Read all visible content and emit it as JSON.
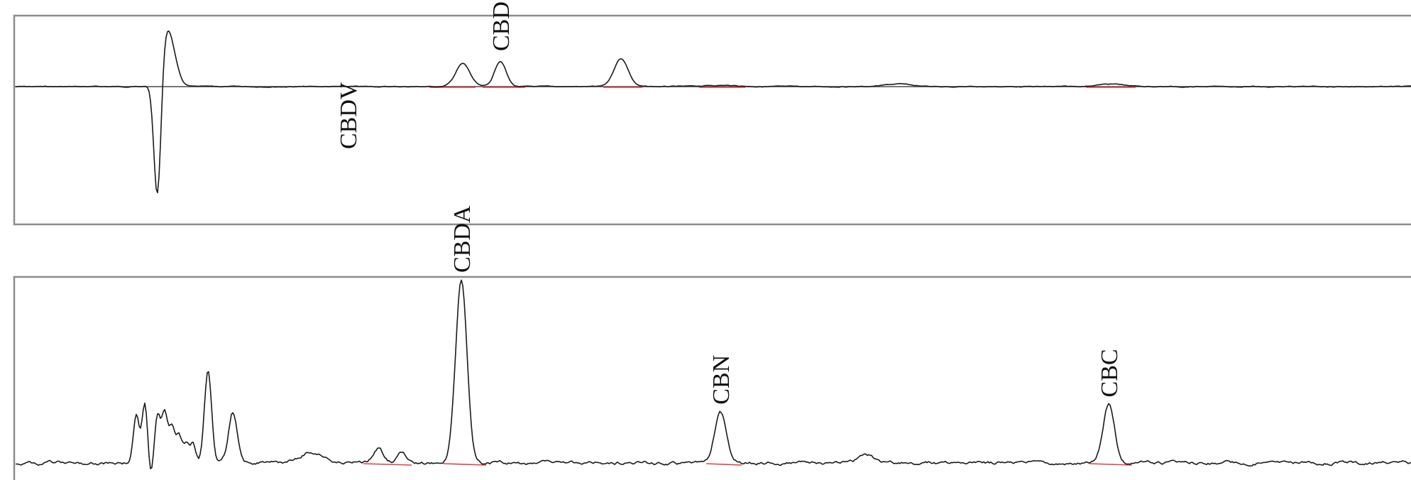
{
  "chart_data": [
    {
      "type": "line",
      "title": "",
      "xlabel": "",
      "ylabel": "",
      "grid": false,
      "legend": "none",
      "trace_color": "#1a1a1a",
      "integration_color": "#e0404a",
      "xlim": [
        0,
        1988
      ],
      "ylim": [
        -1,
        1
      ],
      "peaks": [
        {
          "label": "CBDV",
          "x": 490,
          "height": 0.0
        },
        {
          "label": "CBD",
          "x": 705,
          "height": 0.2
        }
      ],
      "features": [
        {
          "x": 222,
          "height": -1.0,
          "width": 5
        },
        {
          "x": 236,
          "height": 0.45,
          "width": 10
        },
        {
          "x": 652,
          "height": 0.18,
          "width": 10
        },
        {
          "x": 875,
          "height": 0.22,
          "width": 10
        },
        {
          "x": 1015,
          "height": 0.01,
          "width": 25
        },
        {
          "x": 1265,
          "height": 0.02,
          "width": 18
        },
        {
          "x": 1565,
          "height": 0.02,
          "width": 20
        }
      ],
      "integrations": [
        {
          "x0": 605,
          "x1": 670
        },
        {
          "x0": 680,
          "x1": 740
        },
        {
          "x0": 850,
          "x1": 905
        },
        {
          "x0": 985,
          "x1": 1050
        },
        {
          "x0": 1530,
          "x1": 1600
        }
      ]
    },
    {
      "type": "line",
      "title": "",
      "xlabel": "",
      "ylabel": "",
      "grid": false,
      "legend": "none",
      "trace_color": "#1a1a1a",
      "integration_color": "#e0404a",
      "xlim": [
        0,
        1988
      ],
      "ylim": [
        0,
        1
      ],
      "peaks": [
        {
          "label": "CBDA",
          "x": 650,
          "height": 1.0
        },
        {
          "label": "CBN",
          "x": 1015,
          "height": 0.28
        },
        {
          "label": "CBC",
          "x": 1562,
          "height": 0.32
        }
      ],
      "features": [
        {
          "x": 192,
          "height": 0.26,
          "width": 4
        },
        {
          "x": 204,
          "height": 0.32,
          "width": 4
        },
        {
          "x": 212,
          "height": -0.1,
          "width": 3
        },
        {
          "x": 222,
          "height": 0.26,
          "width": 4
        },
        {
          "x": 232,
          "height": 0.28,
          "width": 4
        },
        {
          "x": 242,
          "height": 0.2,
          "width": 4
        },
        {
          "x": 252,
          "height": 0.14,
          "width": 4
        },
        {
          "x": 262,
          "height": 0.1,
          "width": 4
        },
        {
          "x": 272,
          "height": 0.1,
          "width": 4
        },
        {
          "x": 293,
          "height": 0.5,
          "width": 5
        },
        {
          "x": 328,
          "height": 0.28,
          "width": 6
        },
        {
          "x": 440,
          "height": 0.06,
          "width": 16
        },
        {
          "x": 533,
          "height": 0.08,
          "width": 7
        },
        {
          "x": 566,
          "height": 0.07,
          "width": 6
        },
        {
          "x": 1220,
          "height": 0.05,
          "width": 10
        }
      ],
      "integrations": [
        {
          "x0": 512,
          "x1": 580
        },
        {
          "x0": 625,
          "x1": 685
        },
        {
          "x0": 995,
          "x1": 1045
        },
        {
          "x0": 1535,
          "x1": 1595
        }
      ]
    }
  ]
}
